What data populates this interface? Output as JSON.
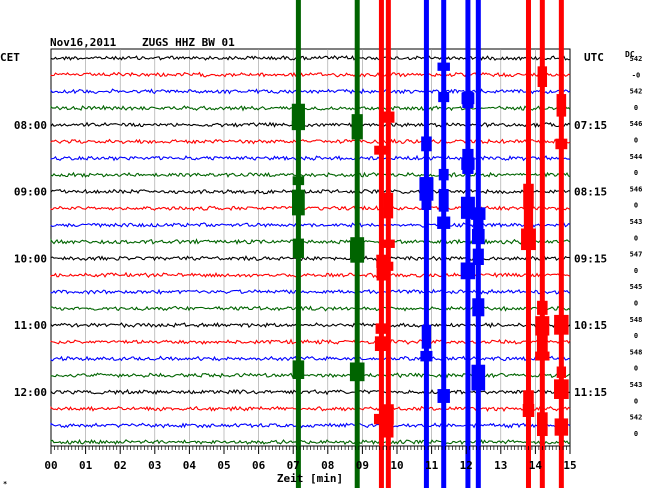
{
  "header": {
    "date": "Nov16,2011",
    "station": "ZUGS HHZ BW 01",
    "left_zone": "CET",
    "right_zone": "UTC",
    "dc_label": "DC"
  },
  "chart_data": {
    "type": "line",
    "title": "Nov16,2011   ZUGS HHZ BW 01",
    "xlabel": "Zeit [min]",
    "ylabel": "",
    "xlim": [
      0,
      15
    ],
    "x_ticks": [
      "00",
      "01",
      "02",
      "03",
      "04",
      "05",
      "06",
      "07",
      "08",
      "09",
      "10",
      "11",
      "12",
      "13",
      "14",
      "15"
    ],
    "grid": true,
    "trace_count": 24,
    "trace_minutes": 15,
    "trace_colors": [
      "#000000",
      "#ff0000",
      "#0000ff",
      "#006400"
    ],
    "time_labels_left": [
      {
        "trace": 4,
        "label": "08:00"
      },
      {
        "trace": 8,
        "label": "09:00"
      },
      {
        "trace": 12,
        "label": "10:00"
      },
      {
        "trace": 16,
        "label": "11:00"
      },
      {
        "trace": 20,
        "label": "12:00"
      }
    ],
    "time_labels_right": [
      {
        "trace": 4,
        "label": "07:15"
      },
      {
        "trace": 8,
        "label": "08:15"
      },
      {
        "trace": 12,
        "label": "09:15"
      },
      {
        "trace": 16,
        "label": "10:15"
      },
      {
        "trace": 20,
        "label": "11:15"
      }
    ],
    "dc_values": [
      "542",
      "-0",
      "542",
      "0",
      "546",
      "0",
      "544",
      "0",
      "546",
      "0",
      "543",
      "0",
      "547",
      "0",
      "545",
      "0",
      "548",
      "0",
      "548",
      "0",
      "543",
      "0",
      "542",
      "0"
    ],
    "events": [
      {
        "minute": 7.15,
        "color": "#006400"
      },
      {
        "minute": 8.85,
        "color": "#006400"
      },
      {
        "minute": 9.55,
        "color": "#ff0000"
      },
      {
        "minute": 9.75,
        "color": "#ff0000"
      },
      {
        "minute": 10.85,
        "color": "#0000ff"
      },
      {
        "minute": 11.35,
        "color": "#0000ff"
      },
      {
        "minute": 12.05,
        "color": "#0000ff"
      },
      {
        "minute": 12.35,
        "color": "#0000ff"
      },
      {
        "minute": 13.8,
        "color": "#ff0000"
      },
      {
        "minute": 14.2,
        "color": "#ff0000"
      },
      {
        "minute": 14.75,
        "color": "#ff0000"
      }
    ]
  }
}
